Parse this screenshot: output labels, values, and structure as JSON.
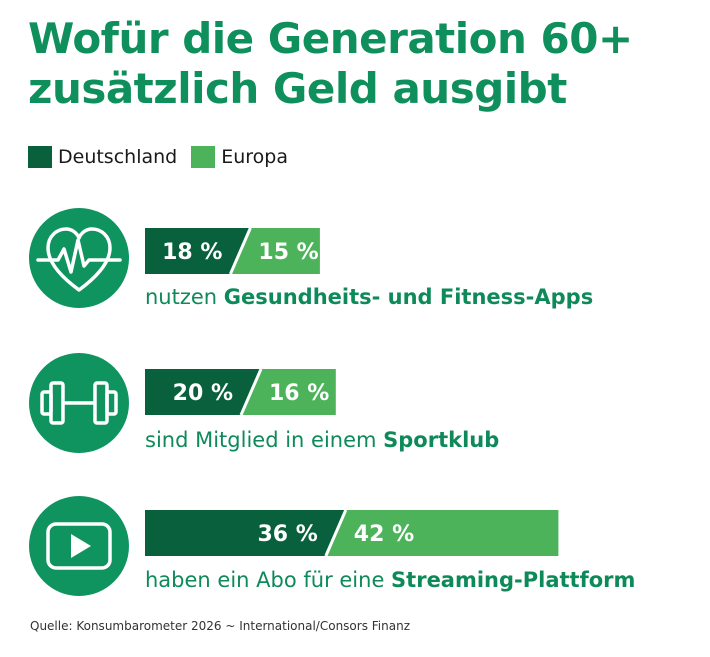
{
  "title": "Wofür die Generation 60+ zusätzlich Geld ausgibt",
  "colors": {
    "deutschland": "#08613c",
    "europa": "#4cb35a",
    "accent": "#0e8f5c",
    "circle": "#0f9460"
  },
  "legend": [
    {
      "label": "Deutschland",
      "color": "#08613c"
    },
    {
      "label": "Europa",
      "color": "#4cb35a"
    }
  ],
  "rows": [
    {
      "icon": "heart-pulse-icon",
      "label_prefix": "nutzen ",
      "label_bold": "Gesundheits- und Fitness-Apps",
      "de_label": "18 %",
      "eu_label": "15 %"
    },
    {
      "icon": "dumbbell-icon",
      "label_prefix": "sind Mitglied in einem ",
      "label_bold": "Sportklub",
      "de_label": "20 %",
      "eu_label": "16 %"
    },
    {
      "icon": "play-video-icon",
      "label_prefix": "haben ein Abo für eine ",
      "label_bold": "Streaming-Plattform",
      "de_label": "36 %",
      "eu_label": "42 %"
    }
  ],
  "chart_data": {
    "type": "bar",
    "title": "Wofür die Generation 60+ zusätzlich Geld ausgibt",
    "categories": [
      "nutzen Gesundheits- und Fitness-Apps",
      "sind Mitglied in einem Sportklub",
      "haben ein Abo für eine Streaming-Plattform"
    ],
    "series": [
      {
        "name": "Deutschland",
        "values": [
          18,
          20,
          36
        ]
      },
      {
        "name": "Europa",
        "values": [
          15,
          16,
          42
        ]
      }
    ],
    "stacked": true,
    "unit": "%"
  },
  "source": "Quelle: Konsumbarometer 2026 ~ International/Consors Finanz"
}
